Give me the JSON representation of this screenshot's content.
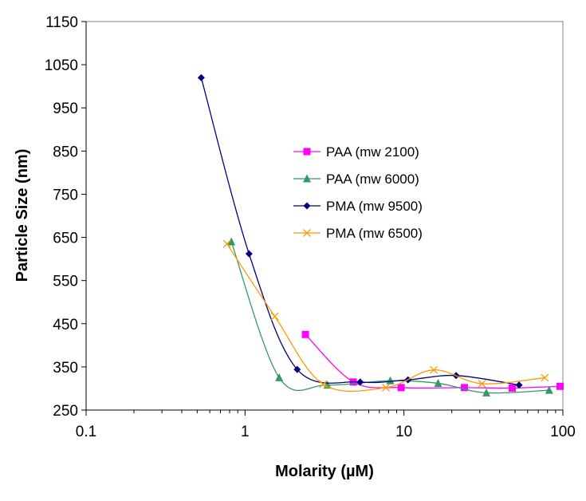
{
  "chart_data": {
    "type": "scatter",
    "title": "",
    "xlabel": "Molarity (µM)",
    "ylabel": "Particle Size (nm)",
    "x_scale": "log",
    "xlim": [
      0.1,
      100
    ],
    "ylim": [
      250,
      1150
    ],
    "x_ticks": [
      0.1,
      1,
      10,
      100
    ],
    "x_tick_labels": [
      "0.1",
      "1",
      "10",
      "100"
    ],
    "y_ticks": [
      250,
      350,
      450,
      550,
      650,
      750,
      850,
      950,
      1050,
      1150
    ],
    "y_tick_labels": [
      "250",
      "350",
      "450",
      "550",
      "650",
      "750",
      "850",
      "950",
      "1050",
      "1150"
    ],
    "grid": false,
    "legend_position": "center-right",
    "series": [
      {
        "name": "PAA (mw 2100)",
        "color": "#ff00ff",
        "marker": "square",
        "x": [
          2.4,
          4.8,
          9.6,
          24,
          48,
          96
        ],
        "y": [
          425,
          315,
          302,
          302,
          301,
          305
        ]
      },
      {
        "name": "PAA (mw 6000)",
        "color": "#339966",
        "marker": "triangle",
        "x": [
          0.82,
          1.64,
          3.3,
          8.2,
          16.4,
          33,
          82
        ],
        "y": [
          640,
          325,
          308,
          318,
          312,
          290,
          296
        ]
      },
      {
        "name": "PMA (mw 9500)",
        "color": "#000080",
        "marker": "diamond",
        "x": [
          0.53,
          1.06,
          2.13,
          5.3,
          10.6,
          21.3,
          53
        ],
        "y": [
          1020,
          612,
          344,
          315,
          320,
          330,
          308
        ]
      },
      {
        "name": "PMA (mw 6500)",
        "color": "#ff9900",
        "marker": "x",
        "x": [
          0.77,
          1.54,
          3.1,
          7.7,
          15.4,
          31,
          77
        ],
        "y": [
          635,
          467,
          310,
          302,
          343,
          311,
          325
        ]
      }
    ]
  }
}
